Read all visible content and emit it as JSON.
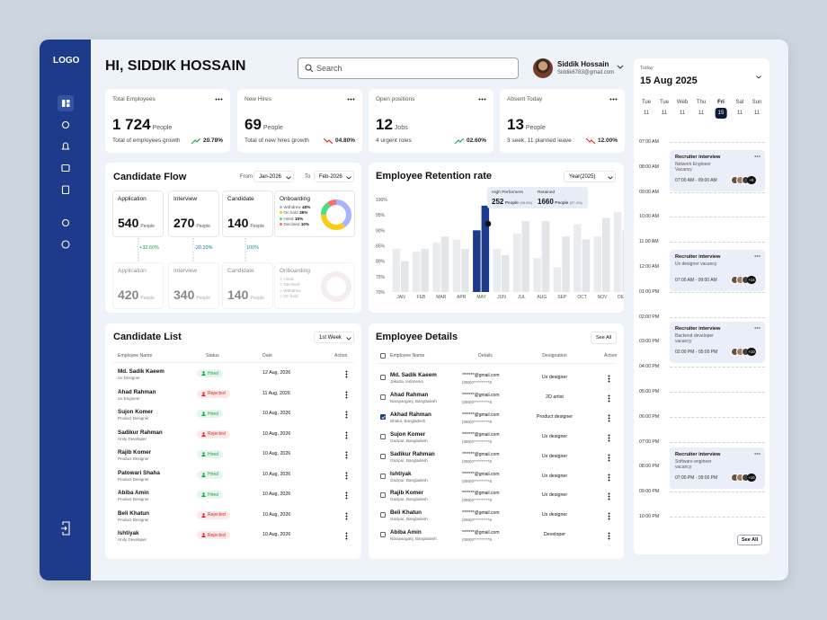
{
  "sidebar": {
    "logo": "LOGO"
  },
  "header": {
    "greeting": "HI, SIDDIK HOSSAIN",
    "search_placeholder": "Search",
    "user_name": "Siddik Hossain",
    "user_email": "Siddik6783@gmail.com"
  },
  "stats": [
    {
      "title": "Total Employees",
      "value": "1 724",
      "unit": "People",
      "caption": "Total of employees growth",
      "change": "20.78%",
      "change_color": "#16a34a",
      "direction": "up"
    },
    {
      "title": "New Hires",
      "value": "69",
      "unit": "People",
      "caption": "Total of new hires growth",
      "change": "04.80%",
      "change_color": "#dc2626",
      "direction": "down"
    },
    {
      "title": "Open positions",
      "value": "12",
      "unit": "Jobs",
      "caption": "4 urgent roles",
      "change": "02.60%",
      "change_color": "#16a34a",
      "direction": "up"
    },
    {
      "title": "Absent Today",
      "value": "13",
      "unit": "People",
      "caption": "3 seek, 11 planned leave",
      "change": "12.00%",
      "change_color": "#dc2626",
      "direction": "down"
    }
  ],
  "candidate_flow": {
    "title": "Candidate Flow",
    "from_label": "From",
    "from": "Jan-2026",
    "to_label": "To",
    "to": "Feb-2026",
    "rows": [
      {
        "stages": [
          {
            "name": "Application",
            "value": "540",
            "unit": "People"
          },
          {
            "name": "Interview",
            "value": "270",
            "unit": "People"
          },
          {
            "name": "Candidate",
            "value": "140",
            "unit": "People"
          }
        ],
        "onboarding": {
          "title": "Onboarding",
          "segments": [
            {
              "name": "Withdrew",
              "value": 40,
              "value_label": "40%",
              "color": "#a5b4fc"
            },
            {
              "name": "On hold",
              "value": 35,
              "value_label": "35%",
              "color": "#facc15"
            },
            {
              "name": "Hired",
              "value": 15,
              "value_label": "15%",
              "color": "#4ade80"
            },
            {
              "name": "Declined",
              "value": 10,
              "value_label": "10%",
              "color": "#f87171"
            }
          ]
        }
      },
      {
        "stages": [
          {
            "name": "Application",
            "value": "420",
            "unit": "People"
          },
          {
            "name": "Interview",
            "value": "340",
            "unit": "People"
          },
          {
            "name": "Candidate",
            "value": "140",
            "unit": "People"
          }
        ],
        "onboarding": {
          "title": "Onboarding",
          "segments": [
            {
              "name": "Hired"
            },
            {
              "name": "Declined"
            },
            {
              "name": "Withdrew"
            },
            {
              "name": "On hold"
            }
          ]
        }
      }
    ],
    "changes": [
      {
        "text": "+32.60%",
        "color": "#16a34a"
      },
      {
        "text": "-20.10%",
        "color": "#0e7490"
      },
      {
        "text": "100%",
        "color": "#0d9488"
      }
    ]
  },
  "retention": {
    "title": "Employee Retention rate",
    "period": "Year(2025)",
    "chart_data": {
      "type": "bar",
      "categories": [
        "JAN",
        "FEB",
        "MAR",
        "APR",
        "MAY",
        "JUN",
        "JUL",
        "AUG",
        "SEP",
        "OCT",
        "NOV",
        "DEC"
      ],
      "series": [
        {
          "name": "High Performers",
          "color": "#e9ebef",
          "values": [
            84,
            83,
            86,
            87,
            90,
            84,
            89,
            81,
            78,
            92,
            88,
            96
          ]
        },
        {
          "name": "Retained",
          "color": "#e2e5ea",
          "values": [
            80,
            84,
            88,
            84,
            98,
            82,
            93,
            93,
            88,
            87,
            94,
            90
          ]
        }
      ],
      "highlight": {
        "index": 4,
        "color": "#1e3a8a"
      },
      "ylim": [
        70,
        100
      ],
      "yticks": [
        {
          "value": 70,
          "label": "70%"
        },
        {
          "value": 75,
          "label": "75%"
        },
        {
          "value": 80,
          "label": "80%"
        },
        {
          "value": 85,
          "label": "85%"
        },
        {
          "value": 90,
          "label": "90%"
        },
        {
          "value": 95,
          "label": "95%"
        },
        {
          "value": 100,
          "label": "100%"
        }
      ],
      "tooltip": [
        {
          "count": "252",
          "unit": "People",
          "share": "(98.5%)"
        },
        {
          "count": "1660",
          "unit": "People",
          "share": "(97.4%)"
        }
      ]
    }
  },
  "candidate_list": {
    "title": "Candidate List",
    "filter": "1st Week",
    "columns": [
      "Employee Name",
      "Status",
      "Date",
      "Action"
    ],
    "rows": [
      {
        "name": "Md. Sadik Kaeem",
        "role": "Ux Designer",
        "status": "Hired",
        "status_color": "#16a34a",
        "date": "12 Aug, 2026"
      },
      {
        "name": "Ahad Rahman",
        "role": "Ux Engineer",
        "status": "Rejected",
        "status_color": "#dc2626",
        "date": "11 Aug, 2026"
      },
      {
        "name": "Sujon Komer",
        "role": "Product Designer",
        "status": "Hired",
        "status_color": "#16a34a",
        "date": "10 Aug, 2026"
      },
      {
        "name": "Sadikur Rahman",
        "role": "Unity Developer",
        "status": "Rejected",
        "status_color": "#dc2626",
        "date": "10 Aug, 2026"
      },
      {
        "name": "Rajib Komer",
        "role": "Product Designer",
        "status": "Hired",
        "status_color": "#16a34a",
        "date": "10 Aug, 2026"
      },
      {
        "name": "Patowari Shaha",
        "role": "Product Designer",
        "status": "Hired",
        "status_color": "#16a34a",
        "date": "10 Aug, 2026"
      },
      {
        "name": "Abiba Amin",
        "role": "Product Designer",
        "status": "Hired",
        "status_color": "#16a34a",
        "date": "10 Aug, 2026"
      },
      {
        "name": "Beli Khatun",
        "role": "Product Designer",
        "status": "Rejected",
        "status_color": "#dc2626",
        "date": "10 Aug, 2026"
      },
      {
        "name": "Ishtiyak",
        "role": "Unity Developer",
        "status": "Rejected",
        "status_color": "#dc2626",
        "date": "10 Aug, 2026"
      }
    ]
  },
  "employee_details": {
    "title": "Employee Details",
    "action": "See All",
    "columns": [
      "Employee Name",
      "Details",
      "Designation",
      "Action"
    ],
    "rows": [
      {
        "name": "Md. Sadik Kaeem",
        "location": "Jakarta, Indonesia",
        "email": "*******@gmail.com",
        "phone": "(088)0**********8",
        "designation": "Ux designer",
        "checked": false
      },
      {
        "name": "Ahad Rahman",
        "location": "Narayanganj, Bangladesh",
        "email": "*******@gmail.com",
        "phone": "(088)0**********8",
        "designation": "2D artist",
        "checked": false
      },
      {
        "name": "Akhad Rahman",
        "location": "Dhaka, Bangladesh",
        "email": "*******@gmail.com",
        "phone": "(088)0**********8",
        "designation": "Product designer",
        "checked": true
      },
      {
        "name": "Sujon Komer",
        "location": "Gazipur, Bangladesh",
        "email": "*******@gmail.com",
        "phone": "(088)0**********8",
        "designation": "Ux designer",
        "checked": false
      },
      {
        "name": "Sadikur Rahman",
        "location": "Gazipur, Bangladesh",
        "email": "*******@gmail.com",
        "phone": "(088)0**********8",
        "designation": "Ux designer",
        "checked": false
      },
      {
        "name": "Ishtiyak",
        "location": "Gazipur, Bangladesh",
        "email": "*******@gmail.com",
        "phone": "(088)0**********8",
        "designation": "Ux designer",
        "checked": false
      },
      {
        "name": "Rajib Komer",
        "location": "Gazipur, Bangladesh",
        "email": "*******@gmail.com",
        "phone": "(088)0**********8",
        "designation": "Ux designer",
        "checked": false
      },
      {
        "name": "Beli Khatun",
        "location": "Gazipur, Bangladesh",
        "email": "*******@gmail.com",
        "phone": "(088)0**********8",
        "designation": "Ux designer",
        "checked": false
      },
      {
        "name": "Abiba Amin",
        "location": "Narayanganj, Bangladesh",
        "email": "*******@gmail.com",
        "phone": "(088)0**********8",
        "designation": "Developer",
        "checked": false
      }
    ]
  },
  "calendar": {
    "today_label": "Today",
    "date": "15 Aug 2025",
    "days": [
      {
        "name": "Tue",
        "date": "11"
      },
      {
        "name": "Tue",
        "date": "11"
      },
      {
        "name": "Web",
        "date": "11"
      },
      {
        "name": "Thu",
        "date": "11"
      },
      {
        "name": "Fri",
        "date": "15",
        "selected": true
      },
      {
        "name": "Sat",
        "date": "11"
      },
      {
        "name": "Sun",
        "date": "11"
      }
    ],
    "times": [
      "07:00 AM",
      "08:00 AM",
      "09:00 AM",
      "10:00 AM",
      "11:00 AM",
      "12:00 AM",
      "01:00 PM",
      "02:00 PM",
      "03:00 PM",
      "04:00 PM",
      "05:00 PM",
      "06:00 PM",
      "07:00 PM",
      "08:00 PM",
      "09:00 PM",
      "10:00 PM"
    ],
    "events": [
      {
        "title": "Recruiter interview",
        "subtitle": "Network Engineer Vacancy",
        "time": "07:00 AM - 09:00 AM",
        "extra": "+8"
      },
      {
        "title": "Recruiter interview",
        "subtitle": "Ux designer vacancy",
        "time": "07:00 AM - 09:00 AM",
        "extra": "+14"
      },
      {
        "title": "Recruiter interview",
        "subtitle": "Backend developer vacancy",
        "time": "02:00 PM - 05:00 PM",
        "extra": "+10"
      },
      {
        "title": "Recruiter interview",
        "subtitle": "Software engineer vacancy",
        "time": "07:00 PM - 09:00 PM",
        "extra": "+10"
      }
    ],
    "action": "See All"
  }
}
